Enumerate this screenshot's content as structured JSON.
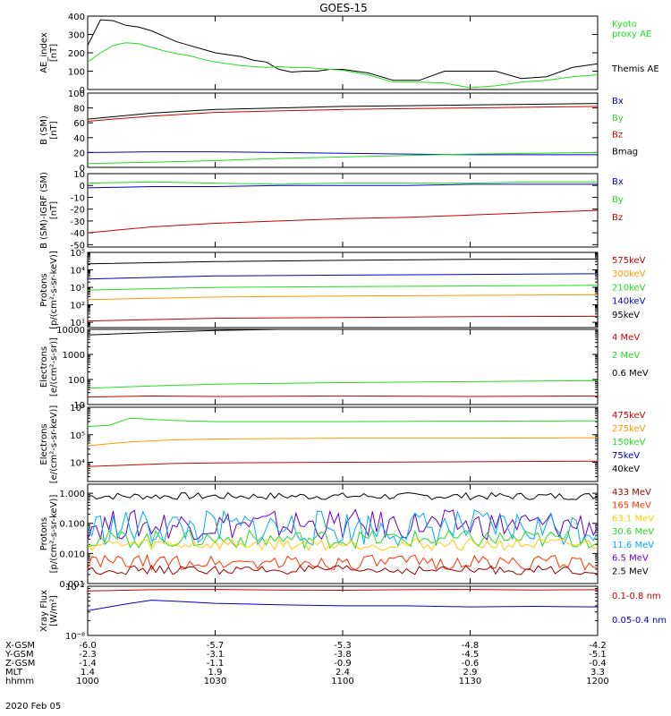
{
  "title": "GOES-15",
  "date_label": "2020 Feb 05",
  "chart_data": [
    {
      "type": "line",
      "ylabel": [
        "AE_index",
        "[nT]"
      ],
      "ylim": [
        0,
        400
      ],
      "scale": "linear",
      "yticks": [
        0,
        100,
        200,
        300,
        400
      ],
      "yticklabels": [
        "0",
        "100",
        "200",
        "300",
        "400"
      ],
      "legend": [
        {
          "text": "Kyoto",
          "color": "#22dd22"
        },
        {
          "text": "proxy AE",
          "color": "#22dd22"
        },
        {
          "text": "Themis AE",
          "color": "#000000"
        }
      ],
      "series": [
        {
          "name": "Themis AE",
          "color": "#000000",
          "x": [
            1000,
            1003,
            1006,
            1009,
            1012,
            1015,
            1018,
            1021,
            1024,
            1027,
            1030,
            1033,
            1036,
            1039,
            1042,
            1045,
            1048,
            1051,
            1054,
            1057,
            1100,
            1106,
            1112,
            1118,
            1124,
            1130,
            1136,
            1142,
            1148,
            1154,
            1200
          ],
          "y": [
            240,
            380,
            375,
            350,
            340,
            320,
            290,
            260,
            240,
            220,
            200,
            190,
            180,
            160,
            150,
            110,
            95,
            100,
            100,
            110,
            110,
            90,
            50,
            50,
            100,
            100,
            100,
            60,
            70,
            120,
            140
          ]
        },
        {
          "name": "Kyoto proxy AE",
          "color": "#22dd22",
          "x": [
            1000,
            1003,
            1006,
            1009,
            1012,
            1015,
            1018,
            1021,
            1024,
            1027,
            1030,
            1033,
            1036,
            1039,
            1042,
            1045,
            1048,
            1051,
            1054,
            1057,
            1100,
            1106,
            1112,
            1118,
            1124,
            1130,
            1136,
            1142,
            1148,
            1154,
            1200
          ],
          "y": [
            150,
            200,
            240,
            255,
            250,
            230,
            210,
            195,
            185,
            165,
            150,
            140,
            130,
            125,
            120,
            125,
            120,
            120,
            115,
            110,
            105,
            80,
            40,
            40,
            35,
            10,
            20,
            40,
            50,
            70,
            80
          ]
        }
      ]
    },
    {
      "type": "line",
      "ylabel": [
        "B (SM)",
        "[nT]"
      ],
      "ylim": [
        0,
        100
      ],
      "scale": "linear",
      "yticks": [
        0,
        20,
        40,
        60,
        80,
        100
      ],
      "yticklabels": [
        "0",
        "20",
        "40",
        "60",
        "80",
        "100"
      ],
      "legend": [
        {
          "text": "Bx",
          "color": "#0000cc"
        },
        {
          "text": "By",
          "color": "#22dd22"
        },
        {
          "text": "Bz",
          "color": "#cc0000"
        },
        {
          "text": "Bmag",
          "color": "#000000"
        }
      ],
      "series": [
        {
          "name": "Bmag",
          "color": "#000000",
          "x": [
            1000,
            1015,
            1030,
            1045,
            1100,
            1115,
            1130,
            1145,
            1200
          ],
          "y": [
            65,
            73,
            78,
            80,
            82,
            83,
            84,
            85,
            86
          ]
        },
        {
          "name": "Bz",
          "color": "#cc0000",
          "x": [
            1000,
            1015,
            1030,
            1045,
            1100,
            1115,
            1130,
            1145,
            1200
          ],
          "y": [
            62,
            69,
            74,
            76,
            78,
            79,
            80,
            81,
            82
          ]
        },
        {
          "name": "Bx",
          "color": "#0000cc",
          "x": [
            1000,
            1015,
            1030,
            1045,
            1100,
            1115,
            1130,
            1145,
            1200
          ],
          "y": [
            20,
            21,
            21,
            20,
            19,
            18,
            17,
            17,
            17
          ]
        },
        {
          "name": "By",
          "color": "#22dd22",
          "x": [
            1000,
            1015,
            1030,
            1045,
            1100,
            1115,
            1130,
            1145,
            1200
          ],
          "y": [
            5,
            7,
            9,
            12,
            14,
            16,
            18,
            19,
            20
          ]
        }
      ]
    },
    {
      "type": "line",
      "ylabel": [
        "B (SM)-IGRF (SM)",
        "[nT]"
      ],
      "ylim": [
        -52,
        10
      ],
      "scale": "linear",
      "yticks": [
        10,
        0,
        -10,
        -20,
        -30,
        -40,
        -50
      ],
      "yticklabels": [
        "10",
        "0",
        "-10",
        "-20",
        "-30",
        "-40",
        "-50"
      ],
      "legend": [
        {
          "text": "Bx",
          "color": "#0000cc"
        },
        {
          "text": "By",
          "color": "#22dd22"
        },
        {
          "text": "Bz",
          "color": "#cc0000"
        }
      ],
      "series": [
        {
          "name": "Bx",
          "color": "#0000cc",
          "x": [
            1000,
            1015,
            1030,
            1045,
            1100,
            1115,
            1130,
            1145,
            1200
          ],
          "y": [
            -2,
            -1,
            -1,
            0,
            0,
            0,
            1,
            1,
            1
          ]
        },
        {
          "name": "By",
          "color": "#22dd22",
          "x": [
            1000,
            1015,
            1030,
            1045,
            1100,
            1115,
            1130,
            1145,
            1200
          ],
          "y": [
            2,
            3,
            2,
            1,
            2,
            2,
            2,
            3,
            3
          ]
        },
        {
          "name": "Bz",
          "color": "#cc0000",
          "x": [
            1000,
            1015,
            1030,
            1045,
            1100,
            1115,
            1130,
            1145,
            1200
          ],
          "y": [
            -40,
            -35,
            -32,
            -30,
            -28,
            -27,
            -25,
            -23,
            -21
          ]
        }
      ]
    },
    {
      "type": "line",
      "ylabel": [
        "Protons",
        "[p/(cm²-s-sr-keV)]"
      ],
      "ylim": [
        5,
        100000
      ],
      "scale": "log",
      "yticks": [
        10,
        100,
        1000,
        10000,
        100000
      ],
      "yticklabels": [
        "10¹",
        "10²",
        "10³",
        "10⁴",
        "10⁵"
      ],
      "legend": [
        {
          "text": "575keV",
          "color": "#cc0000"
        },
        {
          "text": "300keV",
          "color": "#ff9900"
        },
        {
          "text": "210keV",
          "color": "#22dd22"
        },
        {
          "text": "140keV",
          "color": "#0000cc"
        },
        {
          "text": "95keV",
          "color": "#000000"
        }
      ],
      "series": [
        {
          "name": "95keV",
          "color": "#000000",
          "x": [
            1000,
            1030,
            1100,
            1130,
            1200
          ],
          "y": [
            22000,
            30000,
            35000,
            40000,
            42000
          ]
        },
        {
          "name": "140keV",
          "color": "#0000cc",
          "x": [
            1000,
            1030,
            1100,
            1130,
            1200
          ],
          "y": [
            3000,
            4500,
            5000,
            5500,
            6000
          ]
        },
        {
          "name": "210keV",
          "color": "#22dd22",
          "x": [
            1000,
            1030,
            1100,
            1130,
            1200
          ],
          "y": [
            700,
            1000,
            1100,
            1200,
            1300
          ]
        },
        {
          "name": "300keV",
          "color": "#ff9900",
          "x": [
            1000,
            1030,
            1100,
            1130,
            1200
          ],
          "y": [
            200,
            280,
            320,
            350,
            380
          ]
        },
        {
          "name": "575keV",
          "color": "#cc0000",
          "x": [
            1000,
            1030,
            1100,
            1130,
            1200
          ],
          "y": [
            12,
            17,
            19,
            21,
            22
          ]
        }
      ]
    },
    {
      "type": "line",
      "ylabel": [
        "Electrons",
        "[e/(cm²-s-sr)]"
      ],
      "ylim": [
        10,
        10000
      ],
      "scale": "log",
      "yticks": [
        10,
        100,
        1000,
        10000
      ],
      "yticklabels": [
        "10",
        "100",
        "1000",
        "10000"
      ],
      "legend": [
        {
          "text": "4 MeV",
          "color": "#cc0000"
        },
        {
          "text": "2 MeV",
          "color": "#22dd22"
        },
        {
          "text": "0.6 MeV",
          "color": "#000000"
        }
      ],
      "series": [
        {
          "name": "0.6 MeV",
          "color": "#000000",
          "x": [
            1000,
            1015,
            1030,
            1045,
            1100,
            1130,
            1200
          ],
          "y": [
            6000,
            7500,
            9000,
            10000,
            10000,
            10000,
            10000
          ]
        },
        {
          "name": "2 MeV",
          "color": "#22dd22",
          "x": [
            1000,
            1015,
            1030,
            1100,
            1130,
            1200
          ],
          "y": [
            45,
            55,
            65,
            75,
            82,
            90
          ]
        },
        {
          "name": "4 MeV",
          "color": "#cc0000",
          "x": [
            1000,
            1015,
            1030,
            1100,
            1130,
            1200
          ],
          "y": [
            20,
            22,
            21,
            22,
            21,
            22
          ]
        }
      ]
    },
    {
      "type": "line",
      "ylabel": [
        "Electrons",
        "[e/(cm²-s-sr-keV)]"
      ],
      "ylim": [
        2000,
        1000000
      ],
      "scale": "log",
      "yticks": [
        10000,
        100000,
        1000000
      ],
      "yticklabels": [
        "10⁴",
        "10⁵",
        "10⁶"
      ],
      "legend": [
        {
          "text": "475keV",
          "color": "#cc0000"
        },
        {
          "text": "275keV",
          "color": "#ff9900"
        },
        {
          "text": "150keV",
          "color": "#22dd22"
        },
        {
          "text": "75keV",
          "color": "#0000cc"
        },
        {
          "text": "40keV",
          "color": "#000000"
        }
      ],
      "series": [
        {
          "name": "150keV",
          "color": "#22dd22",
          "x": [
            1000,
            1005,
            1010,
            1020,
            1030,
            1100,
            1130,
            1200
          ],
          "y": [
            200000,
            220000,
            400000,
            330000,
            300000,
            300000,
            310000,
            320000
          ]
        },
        {
          "name": "275keV",
          "color": "#ff9900",
          "x": [
            1000,
            1010,
            1020,
            1030,
            1100,
            1130,
            1200
          ],
          "y": [
            40000,
            55000,
            65000,
            70000,
            75000,
            75000,
            78000
          ]
        },
        {
          "name": "475keV",
          "color": "#cc0000",
          "x": [
            1000,
            1010,
            1020,
            1030,
            1100,
            1130,
            1200
          ],
          "y": [
            7000,
            8000,
            9000,
            9500,
            10000,
            10500,
            11000
          ]
        }
      ]
    },
    {
      "type": "line",
      "ylabel": [
        "Protons",
        "[p/(cm²-s-sr-keV)]"
      ],
      "ylim": [
        0.001,
        2
      ],
      "scale": "log",
      "yticks": [
        1,
        0.1,
        0.01,
        0.001
      ],
      "yticklabels": [
        "1.000",
        "0.100",
        "0.010",
        "0.001"
      ],
      "extra_ticklabels": [
        "0.001"
      ],
      "legend": [
        {
          "text": "433 MeV",
          "color": "#990000"
        },
        {
          "text": "165 MeV",
          "color": "#ff3300"
        },
        {
          "text": "63.1 MeV",
          "color": "#ffcc00"
        },
        {
          "text": "30.6 MeV",
          "color": "#22dd22"
        },
        {
          "text": "11.6 MeV",
          "color": "#00aaff"
        },
        {
          "text": "6.5 MeV",
          "color": "#6600cc"
        },
        {
          "text": "2.5 MeV",
          "color": "#000000"
        }
      ],
      "series": [
        {
          "name": "2.5 MeV",
          "color": "#000000",
          "base": 0.8,
          "jitter": 0.12
        },
        {
          "name": "6.5 MeV",
          "color": "#6600cc",
          "base": 0.09,
          "jitter": 0.5
        },
        {
          "name": "11.6 MeV",
          "color": "#00aaff",
          "base": 0.07,
          "jitter": 0.6
        },
        {
          "name": "30.6 MeV",
          "color": "#22dd22",
          "base": 0.03,
          "jitter": 0.3
        },
        {
          "name": "63.1 MeV",
          "color": "#ffcc00",
          "base": 0.02,
          "jitter": 0.2
        },
        {
          "name": "165 MeV",
          "color": "#ff3300",
          "base": 0.005,
          "jitter": 0.25
        },
        {
          "name": "433 MeV",
          "color": "#990000",
          "base": 0.0028,
          "jitter": 0.15
        }
      ]
    },
    {
      "type": "line",
      "ylabel": [
        "Xray Flux",
        "[W/m²]"
      ],
      "ylim": [
        1e-08,
        1e-07
      ],
      "scale": "log",
      "yticks": [
        1e-07,
        1e-08
      ],
      "yticklabels": [
        "10⁻⁷",
        "10⁻⁸"
      ],
      "legend": [
        {
          "text": "0.1-0.8 nm",
          "color": "#cc0000"
        },
        {
          "text": "0.05-0.4 nm",
          "color": "#0000cc"
        }
      ],
      "series": [
        {
          "name": "0.1-0.8 nm",
          "color": "#cc0000",
          "x": [
            1000,
            1015,
            1030,
            1045,
            1100,
            1115,
            1130,
            1145,
            1200
          ],
          "y": [
            8e-08,
            8.5e-08,
            8.6e-08,
            8.4e-08,
            8.3e-08,
            8.5e-08,
            8.6e-08,
            8.4e-08,
            8.5e-08
          ]
        },
        {
          "name": "0.05-0.4 nm",
          "color": "#0000cc",
          "x": [
            1000,
            1010,
            1015,
            1020,
            1030,
            1045,
            1100,
            1115,
            1130,
            1145,
            1200
          ],
          "y": [
            3.2e-08,
            4.5e-08,
            5.2e-08,
            5e-08,
            4.5e-08,
            4.2e-08,
            4e-08,
            4e-08,
            3.8e-08,
            3.9e-08,
            3.8e-08
          ]
        }
      ]
    }
  ],
  "x_axis": {
    "range": [
      1000,
      1200
    ],
    "rows": [
      {
        "label": "X-GSM",
        "values": [
          "-6.0",
          "-5.7",
          "-5.3",
          "-4.8",
          "-4.2"
        ]
      },
      {
        "label": "Y-GSM",
        "values": [
          "-2.3",
          "-3.1",
          "-3.8",
          "-4.5",
          "-5.1"
        ]
      },
      {
        "label": "Z-GSM",
        "values": [
          "-1.4",
          "-1.1",
          "-0.9",
          "-0.6",
          "-0.4"
        ]
      },
      {
        "label": "MLT",
        "values": [
          "1.4",
          "1.9",
          "2.4",
          "2.9",
          "3.3"
        ]
      },
      {
        "label": "hhmm",
        "values": [
          "1000",
          "1030",
          "1100",
          "1130",
          "1200"
        ]
      }
    ],
    "ticks": [
      1000,
      1030,
      1100,
      1130,
      1200
    ]
  }
}
